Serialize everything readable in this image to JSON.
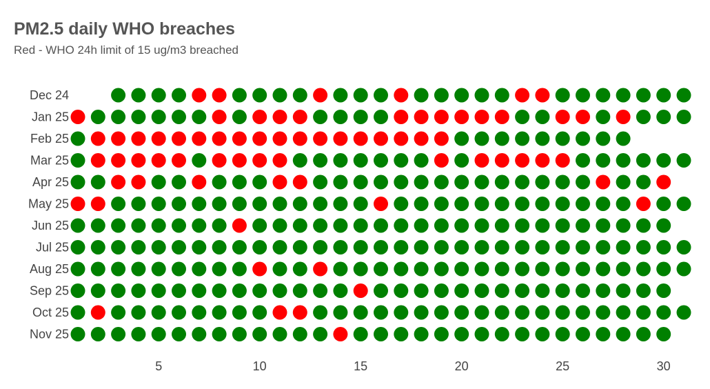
{
  "chart_data": {
    "type": "dot-calendar",
    "title": "PM2.5 daily WHO breaches",
    "subtitle": "Red - WHO 24h limit of 15 ug/m3 breached",
    "colors": {
      "breach": "#ff0000",
      "ok": "#008000"
    },
    "x_ticks": [
      5,
      10,
      15,
      20,
      25,
      30
    ],
    "xlim": [
      1,
      31
    ],
    "rows": [
      {
        "label": "Dec 24",
        "days": 31,
        "start_day": 3,
        "breaches": [
          7,
          8,
          13,
          17,
          23,
          24
        ]
      },
      {
        "label": "Jan 25",
        "days": 31,
        "start_day": 1,
        "breaches": [
          1,
          8,
          10,
          11,
          12,
          17,
          18,
          19,
          20,
          21,
          22,
          25,
          26,
          28
        ]
      },
      {
        "label": "Feb 25",
        "days": 28,
        "start_day": 1,
        "breaches": [
          2,
          3,
          4,
          5,
          6,
          7,
          8,
          9,
          10,
          11,
          12,
          13,
          14,
          15,
          16,
          17,
          18,
          19
        ]
      },
      {
        "label": "Mar 25",
        "days": 31,
        "start_day": 1,
        "breaches": [
          2,
          3,
          4,
          5,
          6,
          8,
          9,
          10,
          11,
          19,
          21,
          22,
          23,
          24,
          25
        ]
      },
      {
        "label": "Apr 25",
        "days": 30,
        "start_day": 1,
        "breaches": [
          3,
          4,
          7,
          11,
          12,
          27,
          30
        ]
      },
      {
        "label": "May 25",
        "days": 31,
        "start_day": 1,
        "breaches": [
          1,
          2,
          16,
          29
        ]
      },
      {
        "label": "Jun 25",
        "days": 30,
        "start_day": 1,
        "breaches": [
          9
        ]
      },
      {
        "label": "Jul 25",
        "days": 31,
        "start_day": 1,
        "breaches": []
      },
      {
        "label": "Aug 25",
        "days": 31,
        "start_day": 1,
        "breaches": [
          10,
          13
        ]
      },
      {
        "label": "Sep 25",
        "days": 30,
        "start_day": 1,
        "breaches": [
          15
        ]
      },
      {
        "label": "Oct 25",
        "days": 31,
        "start_day": 1,
        "breaches": [
          2,
          11,
          12
        ]
      },
      {
        "label": "Nov 25",
        "days": 30,
        "start_day": 1,
        "breaches": [
          14
        ]
      }
    ]
  }
}
